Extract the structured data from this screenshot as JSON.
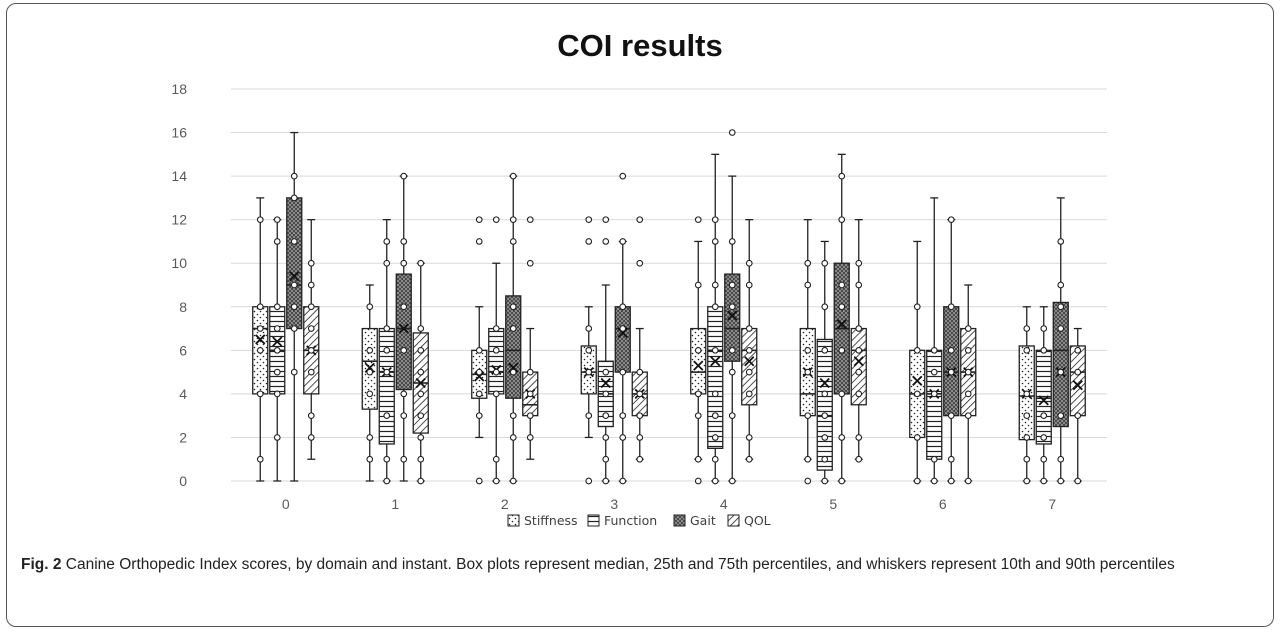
{
  "caption": {
    "label": "Fig. 2",
    "text": "Canine Orthopedic Index scores, by domain and instant. Box plots represent median, 25th and 75th percentiles, and whiskers represent 10th and 90th percentiles"
  },
  "chart_data": {
    "type": "boxplot",
    "title": "COI results",
    "xlabel": "",
    "ylabel": "",
    "ylim": [
      0,
      18
    ],
    "yticks": [
      0,
      2,
      4,
      6,
      8,
      10,
      12,
      14,
      16,
      18
    ],
    "grid": true,
    "legend_position": "bottom",
    "categories": [
      "0",
      "1",
      "2",
      "3",
      "4",
      "5",
      "6",
      "7"
    ],
    "series": [
      {
        "name": "Stiffness",
        "pattern": "dots",
        "boxes": [
          {
            "whisker_low": 0,
            "q1": 4,
            "median": 7,
            "q3": 8,
            "whisker_high": 13,
            "mean": 6.5,
            "points": [
              1,
              4,
              6,
              7,
              8,
              12
            ]
          },
          {
            "whisker_low": 0,
            "q1": 3.3,
            "median": 5.5,
            "q3": 7,
            "whisker_high": 9,
            "mean": 5.2,
            "points": [
              1,
              2,
              4,
              5,
              6,
              8
            ]
          },
          {
            "whisker_low": 2,
            "q1": 3.8,
            "median": 4.9,
            "q3": 6,
            "whisker_high": 8,
            "mean": 4.8,
            "points": [
              0,
              3,
              4,
              5,
              6,
              11,
              12
            ]
          },
          {
            "whisker_low": 2,
            "q1": 4,
            "median": 5,
            "q3": 6.2,
            "whisker_high": 8,
            "mean": 5,
            "points": [
              0,
              3,
              5,
              6,
              7,
              11,
              12
            ]
          },
          {
            "whisker_low": 1,
            "q1": 4,
            "median": 5,
            "q3": 7,
            "whisker_high": 11,
            "mean": 5.3,
            "points": [
              0,
              1,
              3,
              4,
              6,
              9,
              12
            ]
          },
          {
            "whisker_low": 1,
            "q1": 3,
            "median": 4,
            "q3": 7,
            "whisker_high": 12,
            "mean": 5,
            "points": [
              0,
              1,
              3,
              5,
              6,
              9,
              10
            ]
          },
          {
            "whisker_low": 0,
            "q1": 2,
            "median": 4,
            "q3": 6,
            "whisker_high": 11,
            "mean": 4.6,
            "points": [
              0,
              2,
              4,
              6,
              8
            ]
          },
          {
            "whisker_low": 0,
            "q1": 1.9,
            "median": 3.9,
            "q3": 6.2,
            "whisker_high": 8,
            "mean": 4,
            "points": [
              0,
              1,
              2,
              3,
              4,
              6,
              7
            ]
          }
        ]
      },
      {
        "name": "Function",
        "pattern": "hlines",
        "boxes": [
          {
            "whisker_low": 0,
            "q1": 4,
            "median": 6,
            "q3": 8,
            "whisker_high": 12,
            "mean": 6.4,
            "points": [
              2,
              4,
              5,
              6,
              7,
              8,
              11,
              12
            ]
          },
          {
            "whisker_low": 0,
            "q1": 1.7,
            "median": 5,
            "q3": 7,
            "whisker_high": 12,
            "mean": 5,
            "points": [
              0,
              1,
              3,
              5,
              6,
              7,
              10,
              11
            ]
          },
          {
            "whisker_low": 0,
            "q1": 4,
            "median": 5,
            "q3": 7,
            "whisker_high": 10,
            "mean": 5.1,
            "points": [
              0,
              1,
              4,
              5,
              6,
              7,
              12
            ]
          },
          {
            "whisker_low": 0,
            "q1": 2.5,
            "median": 4,
            "q3": 5.5,
            "whisker_high": 9,
            "mean": 4.5,
            "points": [
              0,
              1,
              2,
              3,
              4,
              5,
              11,
              12
            ]
          },
          {
            "whisker_low": 0,
            "q1": 1.5,
            "median": 6,
            "q3": 8,
            "whisker_high": 15,
            "mean": 5.5,
            "points": [
              0,
              1,
              2,
              3,
              4,
              6,
              8,
              9,
              11,
              12
            ]
          },
          {
            "whisker_low": 0,
            "q1": 0.5,
            "median": 3,
            "q3": 6.5,
            "whisker_high": 11,
            "mean": 4.5,
            "points": [
              0,
              1,
              2,
              3,
              4,
              6,
              8,
              10
            ]
          },
          {
            "whisker_low": 0,
            "q1": 1,
            "median": 4,
            "q3": 6,
            "whisker_high": 13,
            "mean": 4,
            "points": [
              0,
              1,
              4,
              5,
              6
            ]
          },
          {
            "whisker_low": 0,
            "q1": 1.7,
            "median": 3.8,
            "q3": 6,
            "whisker_high": 8,
            "mean": 3.7,
            "points": [
              0,
              1,
              2,
              3,
              6,
              7
            ]
          }
        ]
      },
      {
        "name": "Gait",
        "pattern": "checker",
        "boxes": [
          {
            "whisker_low": 0,
            "q1": 7,
            "median": 9,
            "q3": 13,
            "whisker_high": 16,
            "mean": 9.4,
            "points": [
              5,
              7,
              8,
              9,
              11,
              13,
              14
            ]
          },
          {
            "whisker_low": 0,
            "q1": 4.2,
            "median": 7,
            "q3": 9.5,
            "whisker_high": 14,
            "mean": 7,
            "points": [
              1,
              3,
              4,
              6,
              8,
              10,
              11,
              14
            ]
          },
          {
            "whisker_low": 0,
            "q1": 3.8,
            "median": 6,
            "q3": 8.5,
            "whisker_high": 14,
            "mean": 5.2,
            "points": [
              0,
              2,
              3,
              5,
              7,
              8,
              11,
              12,
              14
            ]
          },
          {
            "whisker_low": 0,
            "q1": 5,
            "median": 7,
            "q3": 8,
            "whisker_high": 11,
            "mean": 6.8,
            "points": [
              0,
              2,
              3,
              5,
              7,
              8,
              11,
              14
            ]
          },
          {
            "whisker_low": 0,
            "q1": 5.5,
            "median": 7,
            "q3": 9.5,
            "whisker_high": 14,
            "mean": 7.6,
            "points": [
              0,
              3,
              5,
              6,
              8,
              9,
              11,
              16
            ]
          },
          {
            "whisker_low": 0,
            "q1": 4,
            "median": 7,
            "q3": 10,
            "whisker_high": 15,
            "mean": 7.2,
            "points": [
              0,
              2,
              4,
              6,
              8,
              9,
              12,
              14
            ]
          },
          {
            "whisker_low": 0,
            "q1": 3,
            "median": 5,
            "q3": 8,
            "whisker_high": 12,
            "mean": 5,
            "points": [
              0,
              1,
              3,
              5,
              6,
              8,
              12
            ]
          },
          {
            "whisker_low": 0,
            "q1": 2.5,
            "median": 6,
            "q3": 8.2,
            "whisker_high": 13,
            "mean": 5,
            "points": [
              0,
              1,
              3,
              5,
              7,
              8,
              9,
              11
            ]
          }
        ]
      },
      {
        "name": "QOL",
        "pattern": "diagonal",
        "boxes": [
          {
            "whisker_low": 1,
            "q1": 4,
            "median": 6,
            "q3": 8,
            "whisker_high": 12,
            "mean": 6,
            "points": [
              2,
              3,
              5,
              6,
              7,
              8,
              9,
              10
            ]
          },
          {
            "whisker_low": 0,
            "q1": 2.2,
            "median": 4.5,
            "q3": 6.8,
            "whisker_high": 10,
            "mean": 4.5,
            "points": [
              0,
              1,
              2,
              3,
              4,
              5,
              6,
              7,
              10
            ]
          },
          {
            "whisker_low": 1,
            "q1": 3,
            "median": 3.5,
            "q3": 5,
            "whisker_high": 7,
            "mean": 4,
            "points": [
              2,
              3,
              4,
              5,
              10,
              12
            ]
          },
          {
            "whisker_low": 1,
            "q1": 3,
            "median": 4,
            "q3": 5,
            "whisker_high": 7,
            "mean": 4,
            "points": [
              1,
              2,
              3,
              4,
              5,
              10,
              12
            ]
          },
          {
            "whisker_low": 1,
            "q1": 3.5,
            "median": 6,
            "q3": 7,
            "whisker_high": 12,
            "mean": 5.5,
            "points": [
              1,
              2,
              4,
              5,
              6,
              7,
              9,
              10
            ]
          },
          {
            "whisker_low": 1,
            "q1": 3.5,
            "median": 6,
            "q3": 7,
            "whisker_high": 12,
            "mean": 5.5,
            "points": [
              1,
              2,
              4,
              5,
              6,
              7,
              9,
              10
            ]
          },
          {
            "whisker_low": 0,
            "q1": 3,
            "median": 5,
            "q3": 7,
            "whisker_high": 9,
            "mean": 5,
            "points": [
              0,
              3,
              4,
              5,
              6,
              7
            ]
          },
          {
            "whisker_low": 0,
            "q1": 3,
            "median": 5,
            "q3": 6.2,
            "whisker_high": 7,
            "mean": 4.4,
            "points": [
              0,
              3,
              5,
              6
            ]
          }
        ]
      }
    ],
    "colors": {
      "box_fill": "#ffffff",
      "gait_fill": "#8a8a8a",
      "stroke": "#222222",
      "grid": "#d9d9d9",
      "axis_text": "#595959"
    }
  }
}
